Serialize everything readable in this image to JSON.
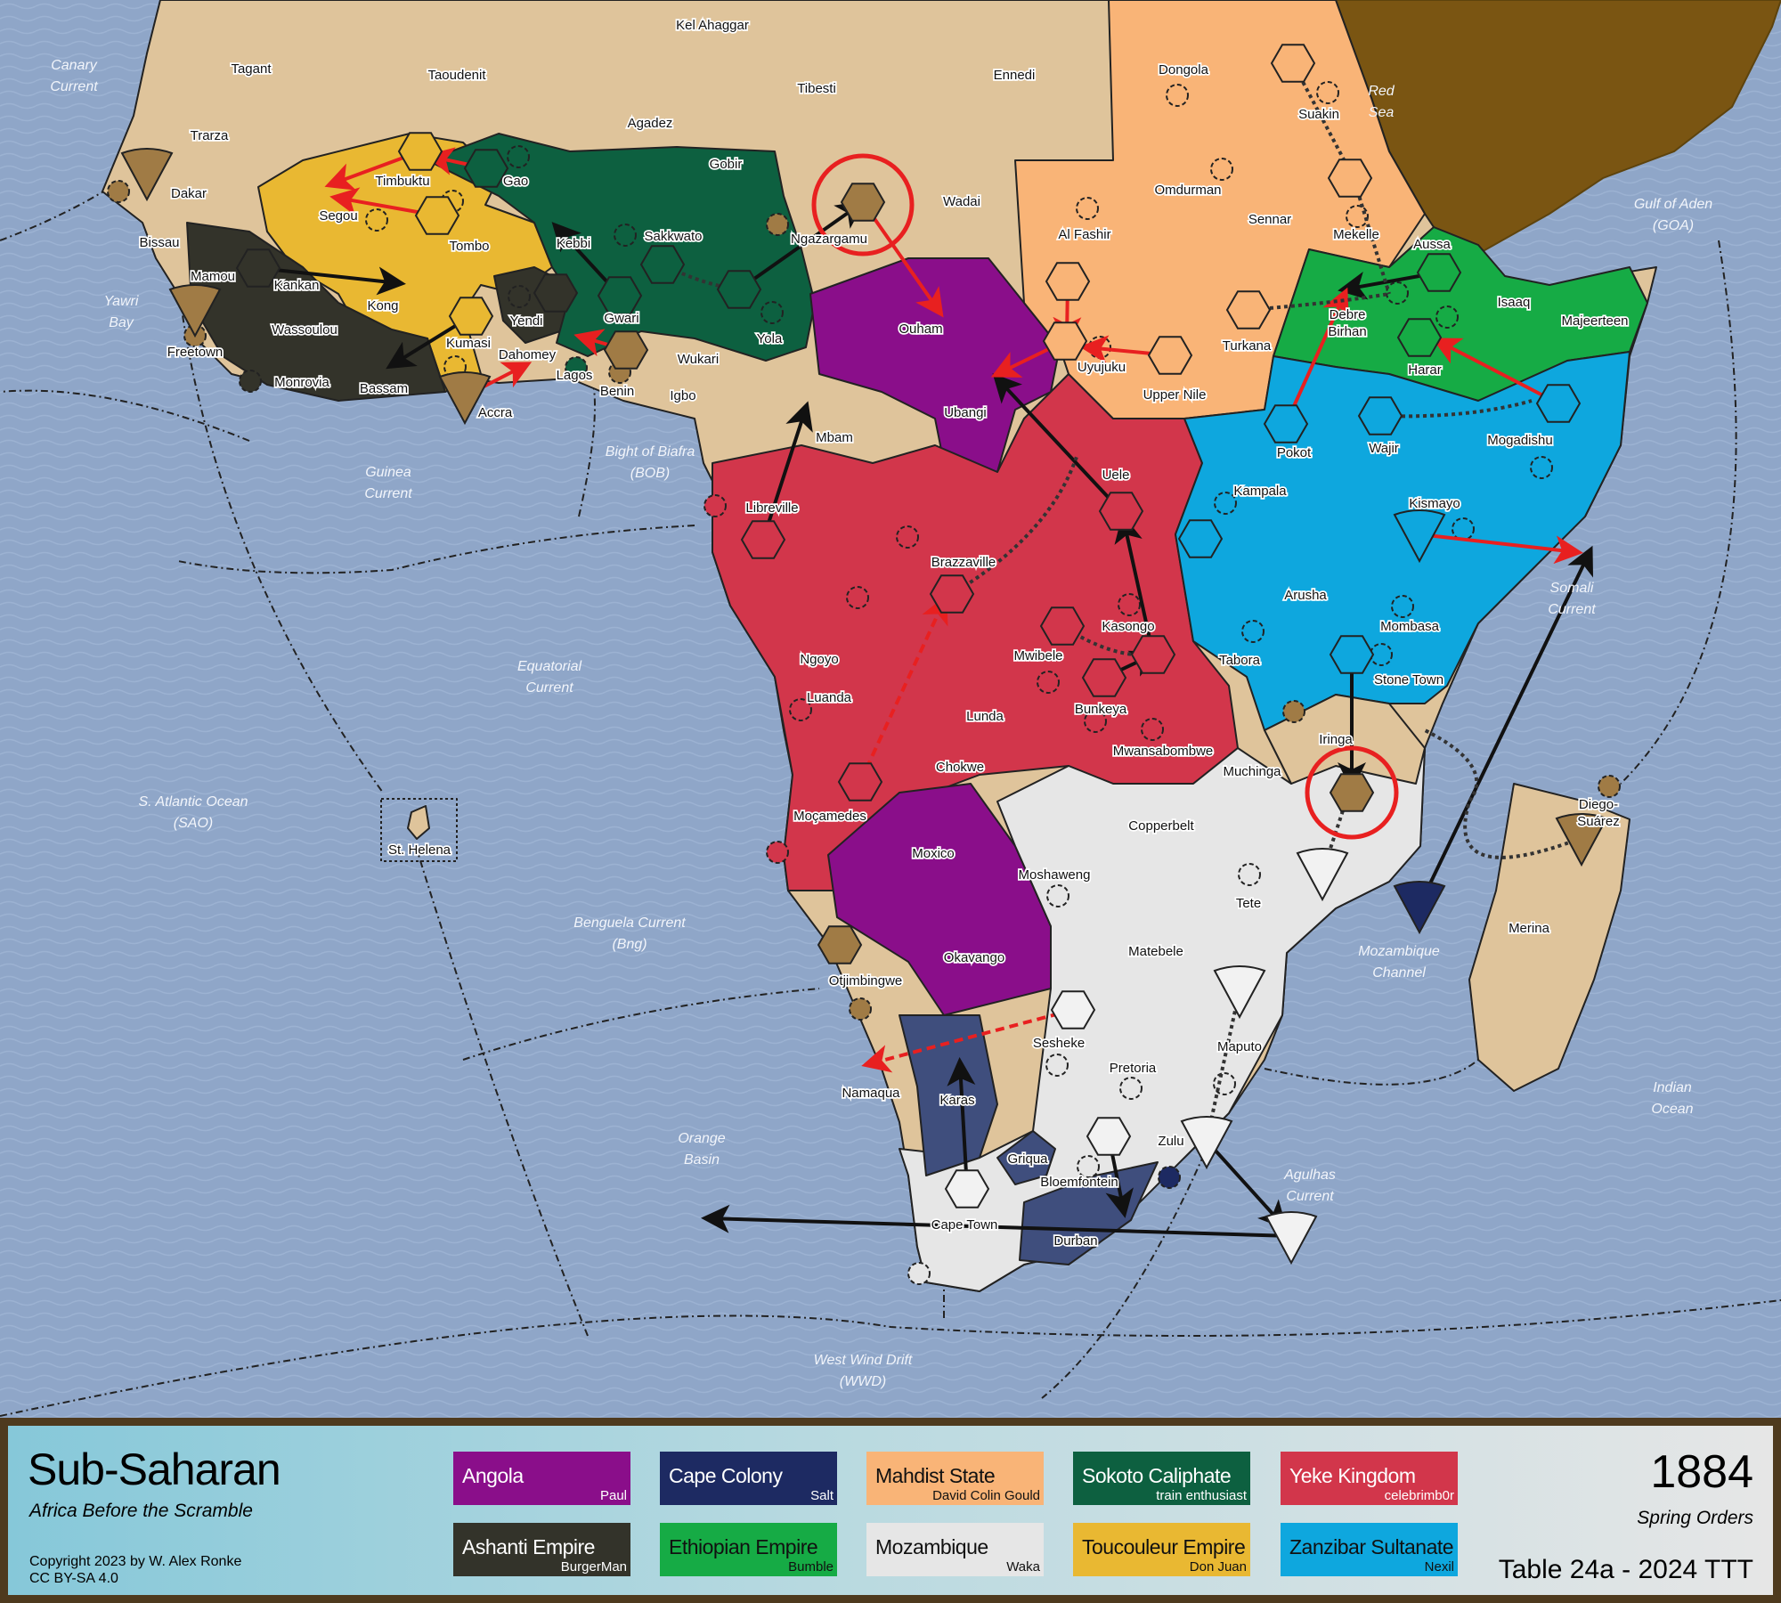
{
  "map": {
    "territories": [
      "Tagant",
      "Taoudenit",
      "Kel Ahaggar",
      "Tibesti",
      "Ennedi",
      "Dongola",
      "Trarza",
      "Agadez",
      "Gobir",
      "Suakin",
      "Timbuktu",
      "Gao",
      "Dakar",
      "Wadai",
      "Omdurman",
      "Sennar",
      "Mekelle",
      "Segou",
      "Al Fashir",
      "Aussa",
      "Ngazargamu",
      "Sakkwato",
      "Kebbi",
      "Tombo",
      "Bissau",
      "Mamou",
      "Kankan",
      "Kong",
      "Gwari",
      "Yola",
      "Ouham",
      "Isaaq",
      "Majeerteen",
      "Debre",
      "Birhan",
      "Turkana",
      "Harar",
      "Yendi",
      "Kumasi",
      "Wassoulou",
      "Freetown",
      "Dahomey",
      "Lagos",
      "Wukari",
      "Benin",
      "Igbo",
      "Uyujuku",
      "Upper Nile",
      "Monrovia",
      "Bassam",
      "Accra",
      "Ubangi",
      "Mbam",
      "Pokot",
      "Wajir",
      "Mogadishu",
      "Uele",
      "Kampala",
      "Kismayo",
      "Libreville",
      "Brazzaville",
      "Arusha",
      "Kasongo",
      "Mombasa",
      "Mwibele",
      "Ngoyo",
      "Tabora",
      "Stone Town",
      "Luanda",
      "Lunda",
      "Bunkeya",
      "Mwansabombwe",
      "Iringa",
      "Chokwe",
      "Muchinga",
      "Moçamedes",
      "Copperbelt",
      "St. Helena",
      "Moxico",
      "Moshaweng",
      "Tete",
      "Merina",
      "Diego-",
      "Suárez",
      "Matebele",
      "Okavango",
      "Otjimbingwe",
      "Sesheke",
      "Maputo",
      "Pretoria",
      "Namaqua",
      "Karas",
      "Zulu",
      "Griqua",
      "Bloemfontein",
      "Cape Town",
      "Durban"
    ],
    "seas": [
      "Canary",
      "Current",
      "Yawri",
      "Bay",
      "Guinea",
      "Current",
      "Bight of Biafra",
      "(BOB)",
      "Equatorial",
      "Current",
      "S. Atlantic Ocean",
      "(SAO)",
      "Benguela Current",
      "(Bng)",
      "Orange",
      "Basin",
      "West Wind Drift",
      "(WWD)",
      "Agulhas",
      "Current",
      "Mozambique",
      "Channel",
      "Indian",
      "Ocean",
      "Somali",
      "Current",
      "Gulf of Aden",
      "(GOA)",
      "Red",
      "Sea"
    ],
    "colors": {
      "sea": "#8fa6c8",
      "neutral": "#dfc49b",
      "arabia": "#7a5512",
      "order_move": "#111111",
      "order_failed": "#e82020"
    }
  },
  "legend": {
    "title": "Sub-Saharan",
    "subtitle": "Africa Before the Scramble",
    "copyright": "Copyright 2023 by W. Alex Ronke",
    "license": "CC BY-SA 4.0",
    "year": "1884",
    "phase": "Spring Orders",
    "table": "Table 24a - 2024 TTT",
    "factions": [
      {
        "name": "Angola",
        "player": "Paul",
        "color": "#8a0e8a",
        "text": "#ffffff"
      },
      {
        "name": "Cape Colony",
        "player": "Salt",
        "color": "#1d2a62",
        "text": "#ffffff"
      },
      {
        "name": "Mahdist State",
        "player": "David Colin Gould",
        "color": "#f9b477",
        "text": "#111111"
      },
      {
        "name": "Sokoto Caliphate",
        "player": "train enthusiast",
        "color": "#0d6040",
        "text": "#ffffff"
      },
      {
        "name": "Yeke Kingdom",
        "player": "celebrimb0r",
        "color": "#d2364b",
        "text": "#ffffff"
      },
      {
        "name": "Ashanti Empire",
        "player": "BurgerMan",
        "color": "#33332a",
        "text": "#ffffff"
      },
      {
        "name": "Ethiopian Empire",
        "player": "Bumble",
        "color": "#16ab45",
        "text": "#111111"
      },
      {
        "name": "Mozambique",
        "player": "Waka",
        "color": "#e6e6e6",
        "text": "#111111"
      },
      {
        "name": "Toucouleur Empire",
        "player": "Don Juan",
        "color": "#e9b832",
        "text": "#111111"
      },
      {
        "name": "Zanzibar Sultanate",
        "player": "Nexil",
        "color": "#0ea7de",
        "text": "#111111"
      }
    ]
  }
}
